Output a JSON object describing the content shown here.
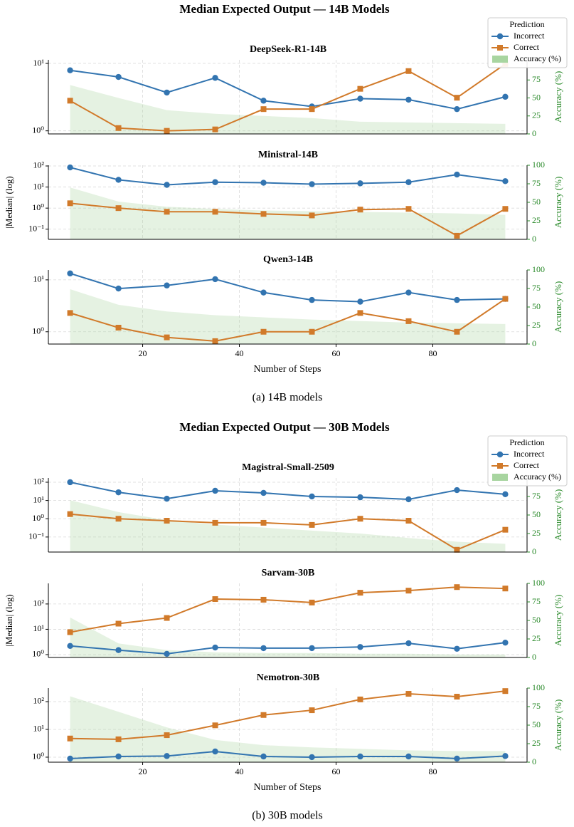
{
  "chart_data": [
    {
      "type": "line",
      "title": "Median Expected Output — 14B Models",
      "caption": "(a) 14B models",
      "xlabel": "Number of Steps",
      "ylabel": "|Median| (log)",
      "y2label": "Accuracy (%)",
      "legend_title": "Prediction",
      "legend": "upper right",
      "log_y": true,
      "grid": true,
      "x": [
        5,
        15,
        25,
        35,
        45,
        55,
        65,
        75,
        85,
        95
      ],
      "xlim": [
        0.5,
        99.5
      ],
      "xticks": [
        20,
        40,
        60,
        80
      ],
      "series": [
        {
          "name": "Incorrect",
          "color": "#3274b0",
          "marker": "circle"
        },
        {
          "name": "Correct",
          "color": "#d17a2a",
          "marker": "square"
        },
        {
          "name": "Accuracy (%)",
          "color": "#a8d5a0",
          "type": "area",
          "axis": "y2"
        }
      ],
      "panels": [
        {
          "title": "DeepSeek-R1-14B",
          "ylim": [
            0.9,
            11.3
          ],
          "yticks": [
            {
              "value": 1,
              "label": "10⁰"
            },
            {
              "value": 10,
              "label": "10¹"
            }
          ],
          "y2lim": [
            0,
            103
          ],
          "y2ticks": [
            0,
            25,
            50,
            75
          ],
          "values": [
            [
              7.9,
              6.3,
              3.7,
              6.1,
              2.8,
              2.3,
              3.0,
              2.9,
              2.1,
              3.2
            ],
            [
              2.8,
              1.1,
              1.0,
              1.05,
              2.1,
              2.1,
              4.2,
              7.7,
              3.1,
              9.8
            ],
            [
              68,
              50,
              33,
              28,
              25,
              22,
              17,
              16,
              15,
              14
            ]
          ]
        },
        {
          "title": "Ministral-14B",
          "ylim": [
            0.033,
            108
          ],
          "yticks": [
            {
              "value": 0.1,
              "label": "10⁻¹"
            },
            {
              "value": 1,
              "label": "10⁰"
            },
            {
              "value": 10,
              "label": "10¹"
            },
            {
              "value": 100,
              "label": "10²"
            }
          ],
          "y2lim": [
            0,
            100
          ],
          "y2ticks": [
            0,
            25,
            50,
            75,
            100
          ],
          "values": [
            [
              85,
              22,
              12.7,
              17,
              16,
              13.7,
              15,
              17,
              39,
              19
            ],
            [
              1.7,
              1.0,
              0.67,
              0.67,
              0.53,
              0.45,
              0.85,
              0.92,
              0.049,
              0.92
            ],
            [
              70,
              51,
              44,
              41,
              39,
              38,
              37,
              36,
              35,
              33
            ]
          ]
        },
        {
          "title": "Qwen3-14B",
          "ylim": [
            0.58,
            15.5
          ],
          "yticks": [
            {
              "value": 1,
              "label": "10⁰"
            },
            {
              "value": 10,
              "label": "10¹"
            }
          ],
          "y2lim": [
            0,
            100
          ],
          "y2ticks": [
            0,
            25,
            50,
            75,
            100
          ],
          "values": [
            [
              13.3,
              6.8,
              7.8,
              10.3,
              5.7,
              4.1,
              3.8,
              5.7,
              4.1,
              4.3
            ],
            [
              2.3,
              1.2,
              0.78,
              0.66,
              1.0,
              1.0,
              2.3,
              1.6,
              1.0,
              4.3
            ],
            [
              74,
              53,
              44,
              39,
              36,
              33,
              31,
              29,
              28,
              27
            ]
          ]
        }
      ]
    },
    {
      "type": "line",
      "title": "Median Expected Output — 30B Models",
      "caption": "(b) 30B models",
      "xlabel": "Number of Steps",
      "ylabel": "|Median| (log)",
      "y2label": "Accuracy (%)",
      "legend_title": "Prediction",
      "legend": "upper right",
      "log_y": true,
      "grid": true,
      "x": [
        5,
        15,
        25,
        35,
        45,
        55,
        65,
        75,
        85,
        95
      ],
      "xlim": [
        0.5,
        99.5
      ],
      "xticks": [
        20,
        40,
        60,
        80
      ],
      "series": [
        {
          "name": "Incorrect",
          "color": "#3274b0",
          "marker": "circle"
        },
        {
          "name": "Correct",
          "color": "#d17a2a",
          "marker": "square"
        },
        {
          "name": "Accuracy (%)",
          "color": "#a8d5a0",
          "type": "area",
          "axis": "y2"
        }
      ],
      "panels": [
        {
          "title": "Magistral-Small-2509",
          "ylim": [
            0.015,
            171
          ],
          "yticks": [
            {
              "value": 0.1,
              "label": "10⁻¹"
            },
            {
              "value": 1,
              "label": "10⁰"
            },
            {
              "value": 10,
              "label": "10¹"
            },
            {
              "value": 100,
              "label": "10²"
            }
          ],
          "y2lim": [
            0,
            100
          ],
          "y2ticks": [
            0,
            25,
            50,
            75
          ],
          "values": [
            [
              100,
              28,
              12.5,
              34,
              26,
              16.6,
              15,
              11.6,
              37,
              22
            ],
            [
              1.8,
              1.0,
              0.78,
              0.6,
              0.6,
              0.46,
              1.0,
              0.78,
              0.02,
              0.25
            ],
            [
              70,
              54,
              43,
              37,
              33,
              29,
              25,
              19,
              14,
              11
            ]
          ]
        },
        {
          "title": "Sarvam-30B",
          "ylim": [
            0.77,
            650
          ],
          "yticks": [
            {
              "value": 1,
              "label": "10⁰"
            },
            {
              "value": 10,
              "label": "10¹"
            },
            {
              "value": 100,
              "label": "10²"
            }
          ],
          "y2lim": [
            0,
            100
          ],
          "y2ticks": [
            0,
            25,
            50,
            75,
            100
          ],
          "values": [
            [
              2.2,
              1.5,
              1.07,
              1.9,
              1.8,
              1.8,
              2.0,
              2.8,
              1.7,
              2.97
            ],
            [
              7.7,
              16.7,
              28,
              156,
              147,
              114,
              278,
              336,
              464,
              408
            ],
            [
              54,
              19,
              10,
              7,
              6,
              6,
              5,
              5,
              4,
              4
            ]
          ]
        },
        {
          "title": "Nemotron-30B",
          "ylim": [
            0.66,
            307
          ],
          "yticks": [
            {
              "value": 1,
              "label": "10⁰"
            },
            {
              "value": 10,
              "label": "10¹"
            },
            {
              "value": 100,
              "label": "10²"
            }
          ],
          "y2lim": [
            0,
            100
          ],
          "y2ticks": [
            0,
            25,
            50,
            75,
            100
          ],
          "values": [
            [
              0.89,
              1.06,
              1.1,
              1.6,
              1.06,
              1.0,
              1.06,
              1.06,
              0.89,
              1.1
            ],
            [
              4.7,
              4.4,
              6.2,
              14,
              33,
              49,
              120,
              191,
              151,
              240
            ],
            [
              89,
              68,
              47,
              30,
              23,
              20,
              18,
              16,
              15,
              15
            ]
          ]
        }
      ]
    }
  ]
}
